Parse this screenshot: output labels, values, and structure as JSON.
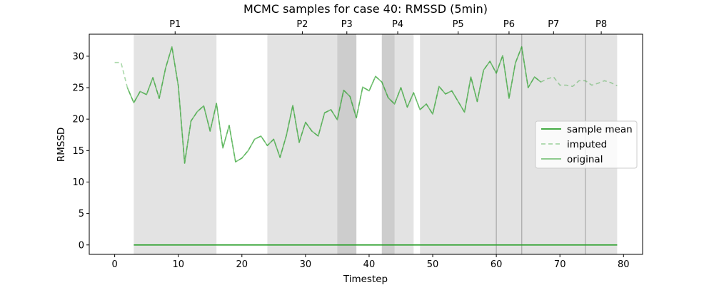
{
  "chart_data": {
    "type": "line",
    "title": "MCMC samples for case 40: RMSSD (5min)",
    "xlabel": "Timestep",
    "ylabel": "RMSSD",
    "xlim": [
      -4,
      83
    ],
    "ylim": [
      -1.5,
      33.5
    ],
    "xticks": [
      0,
      10,
      20,
      30,
      40,
      50,
      60,
      70,
      80
    ],
    "yticks": [
      0,
      5,
      10,
      15,
      20,
      25,
      30
    ],
    "grid": false,
    "legend_position": "right",
    "periods": [
      {
        "label": "P1",
        "start": 3,
        "end": 16
      },
      {
        "label": "P2",
        "start": 24,
        "end": 35
      },
      {
        "label": "P3",
        "start": 35,
        "end": 38
      },
      {
        "label": "P4",
        "start": 42,
        "end": 47
      },
      {
        "label": "P5",
        "start": 48,
        "end": 60
      },
      {
        "label": "P6",
        "start": 60,
        "end": 64
      },
      {
        "label": "P7",
        "start": 64,
        "end": 74
      },
      {
        "label": "P8",
        "start": 74,
        "end": 79
      }
    ],
    "overlaps": [
      {
        "start": 35,
        "end": 38
      },
      {
        "start": 42,
        "end": 44
      }
    ],
    "separators": [
      60,
      64,
      74
    ],
    "series": [
      {
        "name": "sample mean",
        "color": "#2ca02c",
        "style": "solid",
        "x": [
          3,
          79
        ],
        "y": [
          0,
          0
        ]
      },
      {
        "name": "imputed",
        "color": "#2ca02c",
        "style": "dashed",
        "x": [
          0,
          1,
          2,
          3,
          4,
          5,
          6,
          7,
          8,
          9,
          10,
          11,
          12,
          13,
          14,
          15,
          16,
          17,
          18,
          19,
          20,
          21,
          22,
          23,
          24,
          25,
          26,
          27,
          28,
          29,
          30,
          31,
          32,
          33,
          34,
          35,
          36,
          37,
          38,
          39,
          40,
          41,
          42,
          43,
          44,
          45,
          46,
          47,
          48,
          49,
          50,
          51,
          52,
          53,
          54,
          55,
          56,
          57,
          58,
          59,
          60,
          61,
          62,
          63,
          64,
          65,
          66,
          67,
          68,
          69,
          70,
          71,
          72,
          73,
          74,
          75,
          76,
          77,
          78,
          79
        ],
        "y": [
          29.0,
          29.0,
          25.0,
          22.6,
          24.4,
          23.9,
          26.6,
          23.3,
          28.1,
          31.5,
          25.3,
          13.0,
          19.7,
          21.2,
          22.1,
          18.1,
          22.5,
          15.4,
          19.0,
          13.2,
          13.8,
          15.0,
          16.8,
          17.3,
          15.8,
          16.8,
          13.9,
          17.4,
          22.2,
          16.3,
          19.5,
          18.1,
          17.3,
          21.0,
          21.5,
          19.9,
          24.6,
          23.6,
          20.2,
          25.1,
          24.5,
          26.8,
          25.9,
          23.4,
          22.4,
          25.0,
          21.9,
          24.2,
          21.5,
          22.4,
          20.8,
          25.2,
          24.0,
          24.5,
          22.8,
          21.1,
          26.7,
          22.8,
          27.8,
          29.2,
          27.3,
          30.1,
          23.3,
          28.9,
          31.5,
          25.0,
          26.7,
          25.9,
          26.4,
          26.7,
          25.4,
          25.4,
          25.2,
          26.1,
          26.1,
          25.4,
          25.7,
          26.1,
          25.8,
          25.3
        ]
      },
      {
        "name": "original",
        "color": "#2ca02c",
        "style": "solid",
        "x": [
          2,
          3,
          4,
          5,
          6,
          7,
          8,
          9,
          10,
          11,
          12,
          13,
          14,
          15,
          16,
          17,
          18,
          19,
          20,
          21,
          22,
          23,
          24,
          25,
          26,
          27,
          28,
          29,
          30,
          31,
          32,
          33,
          34,
          35,
          36,
          37,
          38,
          39,
          40,
          41,
          42,
          43,
          44,
          45,
          46,
          47,
          48,
          49,
          50,
          51,
          52,
          53,
          54,
          55,
          56,
          57,
          58,
          59,
          60,
          61,
          62,
          63,
          64,
          65,
          66,
          67
        ],
        "y": [
          25.0,
          22.6,
          24.4,
          23.9,
          26.6,
          23.3,
          28.1,
          31.5,
          25.3,
          13.0,
          19.7,
          21.2,
          22.1,
          18.1,
          22.5,
          15.4,
          19.0,
          13.2,
          13.8,
          15.0,
          16.8,
          17.3,
          15.8,
          16.8,
          13.9,
          17.4,
          22.2,
          16.3,
          19.5,
          18.1,
          17.3,
          21.0,
          21.5,
          19.9,
          24.6,
          23.6,
          20.2,
          25.1,
          24.5,
          26.8,
          25.9,
          23.4,
          22.4,
          25.0,
          21.9,
          24.2,
          21.5,
          22.4,
          20.8,
          25.2,
          24.0,
          24.5,
          22.8,
          21.1,
          26.7,
          22.8,
          27.8,
          29.2,
          27.3,
          30.1,
          23.3,
          28.9,
          31.5,
          25.0,
          26.7,
          25.9
        ]
      }
    ]
  }
}
